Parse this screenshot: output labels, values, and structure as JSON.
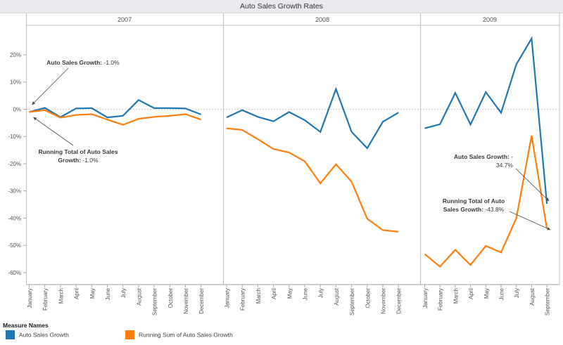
{
  "title": "Auto Sales Growth Rates",
  "legend": {
    "title": "Measure Names",
    "items": [
      {
        "label": "Auto Sales Growth",
        "color": "#1F77B4"
      },
      {
        "label": "Running Sum of Auto Sales Growth",
        "color": "#FF7F0E"
      }
    ]
  },
  "chart_data": {
    "type": "line",
    "title": "Auto Sales Growth Rates",
    "y_axis": {
      "tick_values": [
        20,
        10,
        0,
        -10,
        -20,
        -30,
        -40,
        -50,
        -60
      ],
      "tick_labels": [
        "20%",
        "10%",
        "0%",
        "-10%",
        "-20%",
        "-30%",
        "-40%",
        "-50%",
        "-60%"
      ],
      "ylim": [
        -64,
        31
      ],
      "zero_line": "dotted"
    },
    "series_names": [
      "Auto Sales Growth",
      "Running Sum of Auto Sales Growth"
    ],
    "series_colors": [
      "#1F77B4",
      "#FF7F0E"
    ],
    "panels": [
      {
        "year": "2007",
        "months": [
          "January",
          "February",
          "March",
          "April",
          "May",
          "June",
          "July",
          "August",
          "September",
          "October",
          "November",
          "December"
        ],
        "series": [
          {
            "name": "Auto Sales Growth",
            "color": "#1F77B4",
            "values": [
              -1.0,
              0.5,
              -2.9,
              0.3,
              0.4,
              -3.0,
              -2.4,
              3.4,
              0.4,
              0.4,
              0.3,
              -1.9
            ]
          },
          {
            "name": "Running Sum of Auto Sales Growth",
            "color": "#FF7F0E",
            "values": [
              -1.0,
              -0.3,
              -3.1,
              -2.1,
              -1.8,
              -3.8,
              -5.7,
              -3.5,
              -2.8,
              -2.4,
              -1.8,
              -3.8
            ]
          }
        ]
      },
      {
        "year": "2008",
        "months": [
          "January",
          "February",
          "March",
          "April",
          "May",
          "June",
          "July",
          "August",
          "September",
          "October",
          "November",
          "December"
        ],
        "series": [
          {
            "name": "Auto Sales Growth",
            "color": "#1F77B4",
            "values": [
              -3.0,
              -0.3,
              -2.8,
              -4.4,
              -1.0,
              -4.0,
              -8.3,
              7.4,
              -8.3,
              -14.3,
              -4.6,
              -1.2
            ]
          },
          {
            "name": "Running Sum of Auto Sales Growth",
            "color": "#FF7F0E",
            "values": [
              -7.0,
              -7.6,
              -11.0,
              -14.6,
              -15.9,
              -19.1,
              -27.2,
              -20.2,
              -26.6,
              -40.2,
              -44.4,
              -45.0
            ]
          }
        ]
      },
      {
        "year": "2009",
        "months": [
          "January",
          "February",
          "March",
          "April",
          "May",
          "June",
          "July",
          "August",
          "September"
        ],
        "series": [
          {
            "name": "Auto Sales Growth",
            "color": "#1F77B4",
            "values": [
              -7.0,
              -5.5,
              6.0,
              -5.6,
              6.3,
              -1.3,
              16.5,
              26.0,
              -34.7
            ]
          },
          {
            "name": "Running Sum of Auto Sales Growth",
            "color": "#FF7F0E",
            "values": [
              -53.2,
              -57.8,
              -51.6,
              -57.2,
              -50.2,
              -52.6,
              -40.0,
              -9.7,
              -43.8
            ]
          }
        ]
      }
    ],
    "annotations": [
      {
        "id": "ann-2007-auto-sales",
        "lines": [
          [
            {
              "b": true,
              "t": "Auto Sales Growth:"
            },
            {
              "b": false,
              "t": " -1.0%"
            }
          ]
        ]
      },
      {
        "id": "ann-2007-running-total",
        "lines": [
          [
            {
              "b": true,
              "t": "Running Total of Auto Sales"
            }
          ],
          [
            {
              "b": true,
              "t": "Growth:"
            },
            {
              "b": false,
              "t": " -1.0%"
            }
          ]
        ]
      },
      {
        "id": "ann-2009-auto-sales",
        "lines": [
          [
            {
              "b": true,
              "t": "Auto Sales Growth:"
            },
            {
              "b": false,
              "t": " -"
            }
          ],
          [
            {
              "b": false,
              "t": "34.7%"
            }
          ]
        ]
      },
      {
        "id": "ann-2009-running-total",
        "lines": [
          [
            {
              "b": true,
              "t": "Running Total of Auto"
            }
          ],
          [
            {
              "b": true,
              "t": "Sales Growth:"
            },
            {
              "b": false,
              "t": " -43.8%"
            }
          ]
        ]
      }
    ]
  }
}
